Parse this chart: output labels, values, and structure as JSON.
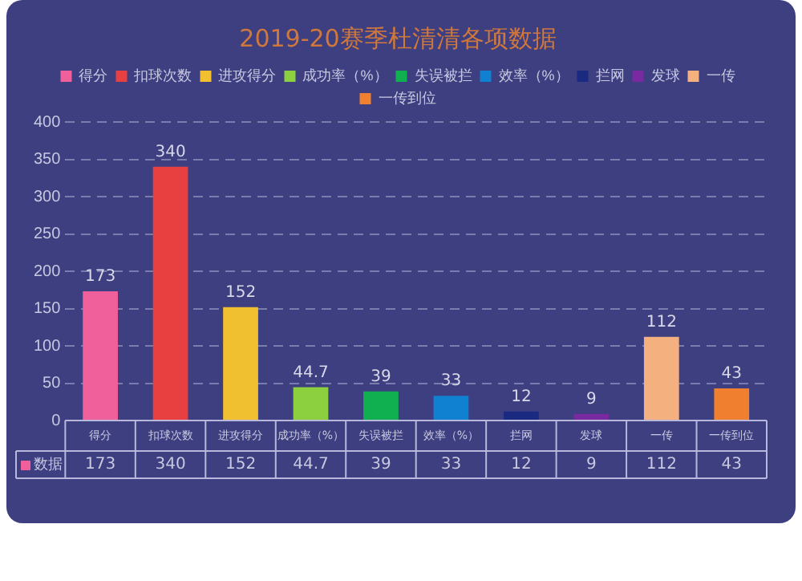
{
  "chart_data": {
    "type": "bar",
    "title": "2019-20赛季杜清清各项数据",
    "categories": [
      "得分",
      "扣球次数",
      "进攻得分",
      "成功率（%）",
      "失误被拦",
      "效率（%）",
      "拦网",
      "发球",
      "一传",
      "一传到位"
    ],
    "series": [
      {
        "name": "得分",
        "color": "#f0609a",
        "values": [
          173,
          null,
          null,
          null,
          null,
          null,
          null,
          null,
          null,
          null
        ],
        "value_labels": [
          "173",
          null,
          null,
          null,
          null,
          null,
          null,
          null,
          null,
          null
        ]
      },
      {
        "name": "扣球次数",
        "color": "#e84040",
        "values": [
          null,
          340,
          null,
          null,
          null,
          null,
          null,
          null,
          null,
          null
        ],
        "value_labels": [
          null,
          "340",
          null,
          null,
          null,
          null,
          null,
          null,
          null,
          null
        ]
      },
      {
        "name": "进攻得分",
        "color": "#f0c030",
        "values": [
          null,
          null,
          152,
          null,
          null,
          null,
          null,
          null,
          null,
          null
        ],
        "value_labels": [
          null,
          null,
          "152",
          null,
          null,
          null,
          null,
          null,
          null,
          null
        ]
      },
      {
        "name": "成功率（%）",
        "color": "#8cd040",
        "values": [
          null,
          null,
          null,
          44.7,
          null,
          null,
          null,
          null,
          null,
          null
        ],
        "value_labels": [
          null,
          null,
          null,
          "44.7",
          null,
          null,
          null,
          null,
          null,
          null
        ]
      },
      {
        "name": "失误被拦",
        "color": "#10b050",
        "values": [
          null,
          null,
          null,
          null,
          39,
          null,
          null,
          null,
          null,
          null
        ],
        "value_labels": [
          null,
          null,
          null,
          null,
          "39",
          null,
          null,
          null,
          null,
          null
        ]
      },
      {
        "name": "效率（%）",
        "color": "#1080d0",
        "values": [
          null,
          null,
          null,
          null,
          null,
          33,
          null,
          null,
          null,
          null
        ],
        "value_labels": [
          null,
          null,
          null,
          null,
          null,
          "33",
          null,
          null,
          null,
          null
        ]
      },
      {
        "name": "拦网",
        "color": "#1a2a80",
        "values": [
          null,
          null,
          null,
          null,
          null,
          null,
          12,
          null,
          null,
          null
        ],
        "value_labels": [
          null,
          null,
          null,
          null,
          null,
          null,
          "12",
          null,
          null,
          null
        ]
      },
      {
        "name": "发球",
        "color": "#7a2aa0",
        "values": [
          null,
          null,
          null,
          null,
          null,
          null,
          null,
          9,
          null,
          null
        ],
        "value_labels": [
          null,
          null,
          null,
          null,
          null,
          null,
          null,
          "9",
          null,
          null
        ]
      },
      {
        "name": "一传",
        "color": "#f5b080",
        "values": [
          null,
          null,
          null,
          null,
          null,
          null,
          null,
          null,
          112,
          null
        ],
        "value_labels": [
          null,
          null,
          null,
          null,
          null,
          null,
          null,
          null,
          "112",
          null
        ]
      },
      {
        "name": "一传到位",
        "color": "#f08030",
        "values": [
          null,
          null,
          null,
          null,
          null,
          null,
          null,
          null,
          null,
          43
        ],
        "value_labels": [
          null,
          null,
          null,
          null,
          null,
          null,
          null,
          null,
          null,
          "43"
        ]
      }
    ],
    "annotations": [
      "数据",
      {
        "text": "173",
        "x": "得分",
        "y": 173
      },
      {
        "text": "340",
        "x": "扣球次数",
        "y": 340
      },
      {
        "text": "152",
        "x": "进攻得分",
        "y": 152
      },
      {
        "text": "44.7",
        "x": "成功率（%）",
        "y": 44.7
      },
      {
        "text": "39",
        "x": "失误被拦",
        "y": 39
      },
      {
        "text": "33",
        "x": "效率（%）",
        "y": 33
      },
      {
        "text": "12",
        "x": "拦网",
        "y": 12
      },
      {
        "text": "9",
        "x": "发球",
        "y": 9
      },
      {
        "text": "112",
        "x": "一传",
        "y": 112
      },
      {
        "text": "43",
        "x": "一传到位",
        "y": 43
      }
    ],
    "ylim": [
      0,
      400
    ],
    "yticks": [
      0,
      50,
      100,
      150,
      200,
      250,
      300,
      350,
      400
    ],
    "grid": "y",
    "legend": "top"
  }
}
